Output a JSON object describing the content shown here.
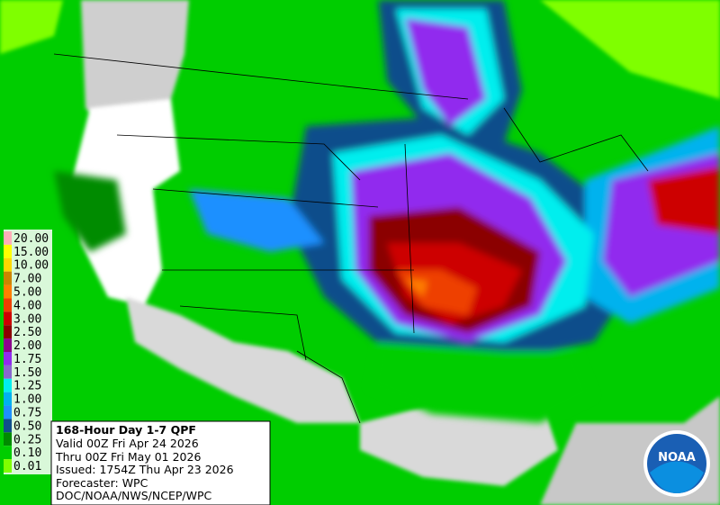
{
  "legend": [
    {
      "label": "20.00",
      "color": "#ffaeb9"
    },
    {
      "label": "15.00",
      "color": "#ffff00"
    },
    {
      "label": "10.00",
      "color": "#ffd700"
    },
    {
      "label": "7.00",
      "color": "#cd8500"
    },
    {
      "label": "5.00",
      "color": "#ff7f00"
    },
    {
      "label": "4.00",
      "color": "#ee4000"
    },
    {
      "label": "3.00",
      "color": "#cd0000"
    },
    {
      "label": "2.50",
      "color": "#8b0000"
    },
    {
      "label": "2.00",
      "color": "#8b008b"
    },
    {
      "label": "1.75",
      "color": "#912cee"
    },
    {
      "label": "1.50",
      "color": "#8968cd"
    },
    {
      "label": "1.25",
      "color": "#00eeee"
    },
    {
      "label": "1.00",
      "color": "#00b2ee"
    },
    {
      "label": "0.75",
      "color": "#1e90ff"
    },
    {
      "label": "0.50",
      "color": "#104e8b"
    },
    {
      "label": "0.25",
      "color": "#008b00"
    },
    {
      "label": "0.10",
      "color": "#00cd00"
    },
    {
      "label": "0.01",
      "color": "#7fff00"
    }
  ],
  "info": {
    "title": "168-Hour Day 1-7 QPF",
    "valid": "Valid 00Z Fri Apr 24 2026",
    "thru": "Thru 00Z Fri May 01 2026",
    "issued": "Issued: 1754Z Thu Apr 23 2026",
    "forecaster": "Forecaster: WPC",
    "agency": "DOC/NOAA/NWS/NCEP/WPC"
  },
  "logo": "NOAA"
}
